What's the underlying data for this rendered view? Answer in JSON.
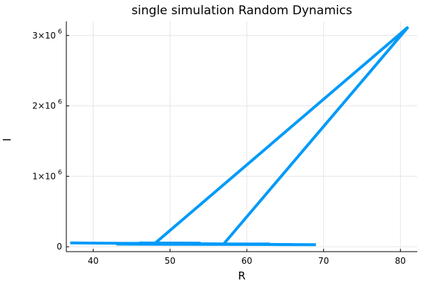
{
  "chart_data": {
    "type": "line",
    "title": "single simulation Random Dynamics",
    "xlabel": "R",
    "ylabel": "I",
    "xlim": [
      36.5,
      82.2
    ],
    "ylim": [
      -70000,
      3200000
    ],
    "grid": true,
    "legend": "none",
    "x_ticks": [
      {
        "value": 40,
        "label": "40"
      },
      {
        "value": 50,
        "label": "50"
      },
      {
        "value": 60,
        "label": "60"
      },
      {
        "value": 70,
        "label": "70"
      },
      {
        "value": 80,
        "label": "80"
      }
    ],
    "y_ticks": [
      {
        "value": 0,
        "mantissa": "0",
        "exponent": ""
      },
      {
        "value": 1000000,
        "mantissa": "1×10",
        "exponent": "6"
      },
      {
        "value": 2000000,
        "mantissa": "2×10",
        "exponent": "6"
      },
      {
        "value": 3000000,
        "mantissa": "3×10",
        "exponent": "6"
      }
    ],
    "series": [
      {
        "color": "#009af9",
        "points": [
          [
            37,
            55000
          ],
          [
            43,
            48000
          ],
          [
            47,
            42000
          ],
          [
            52,
            38000
          ],
          [
            56,
            35000
          ],
          [
            60,
            33000
          ],
          [
            64,
            30000
          ],
          [
            69,
            28000
          ],
          [
            62,
            31000
          ],
          [
            55,
            36000
          ],
          [
            48,
            44000
          ],
          [
            81,
            3120000
          ],
          [
            57,
            40000
          ],
          [
            63,
            38000
          ],
          [
            58,
            39000
          ],
          [
            50,
            45000
          ],
          [
            44,
            47000
          ],
          [
            54,
            50000
          ],
          [
            46,
            52000
          ],
          [
            52,
            47000
          ],
          [
            43,
            36000
          ],
          [
            50,
            34000
          ],
          [
            58,
            32000
          ],
          [
            66,
            31000
          ],
          [
            61,
            34000
          ],
          [
            54,
            36000
          ]
        ]
      }
    ]
  }
}
